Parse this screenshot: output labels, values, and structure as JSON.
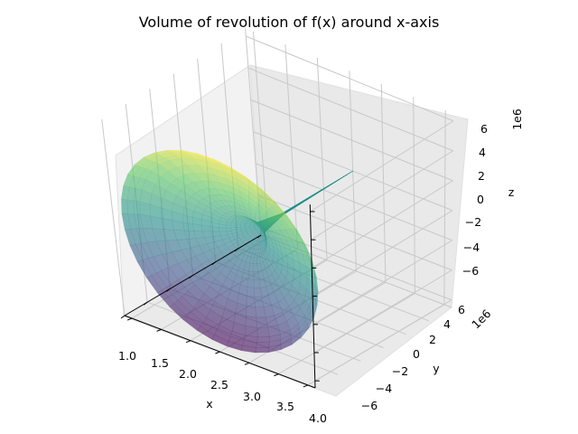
{
  "chart_data": {
    "type": "surface",
    "title": "Volume of revolution of f(x) around x-axis",
    "xlabel": "x",
    "ylabel": "y",
    "zlabel": "z",
    "x_ticks": [
      "1.0",
      "1.5",
      "2.0",
      "2.5",
      "3.0",
      "3.5",
      "4.0"
    ],
    "y_ticks": [
      "−6",
      "−4",
      "−2",
      "0",
      "2",
      "4",
      "6"
    ],
    "z_ticks": [
      "−6",
      "−4",
      "−2",
      "0",
      "2",
      "4",
      "6"
    ],
    "y_offset_label": "1e6",
    "z_offset_label": "1e6",
    "xlim": [
      1,
      4
    ],
    "ylim": [
      -6.5,
      6.5
    ],
    "zlim": [
      -6.5,
      6.5
    ],
    "surface": {
      "x_range": [
        1,
        4
      ],
      "radius_samples": [
        {
          "x": 1.0,
          "r": 0
        },
        {
          "x": 2.5,
          "r": 0.05
        },
        {
          "x": 3.0,
          "r": 0.35
        },
        {
          "x": 3.3,
          "r": 1.4
        },
        {
          "x": 3.5,
          "r": 3.2
        },
        {
          "x": 3.7,
          "r": 5.6
        },
        {
          "x": 3.85,
          "r": 6.4
        }
      ],
      "colormap": "viridis",
      "alpha": 0.6
    },
    "grid": true
  }
}
